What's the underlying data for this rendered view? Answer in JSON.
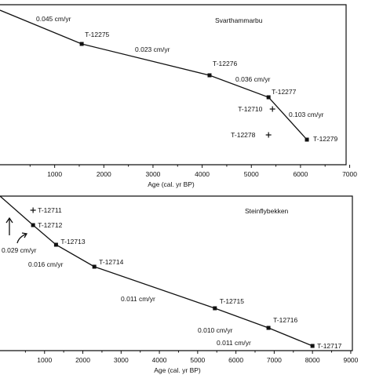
{
  "chart_data": [
    {
      "type": "line",
      "title": "Svarthammarbu",
      "xlabel": "Age (cal. yr BP)",
      "ylabel": "",
      "xlim": [
        0,
        7000
      ],
      "x_ticks": [
        "1000",
        "2000",
        "3000",
        "4000",
        "5000",
        "6000",
        "7000"
      ],
      "points": [
        {
          "x": 1550,
          "label": "T-12275"
        },
        {
          "x": 4150,
          "label": "T-12276"
        },
        {
          "x": 5350,
          "label": "T-12277"
        },
        {
          "x": 6130,
          "label": "T-12279"
        }
      ],
      "excluded_points": [
        {
          "x": 5430,
          "label": "T-12710"
        },
        {
          "x": 5350,
          "label": "T-12278"
        }
      ],
      "rates": [
        "0.045  cm/yr",
        "0.023  cm/yr",
        "0.036  cm/yr",
        "0.103  cm/yr"
      ]
    },
    {
      "type": "line",
      "title": "Steinflybekken",
      "xlabel": "Age (cal. yr BP)",
      "ylabel": "",
      "xlim": [
        0,
        9000
      ],
      "x_ticks": [
        "1000",
        "2000",
        "3000",
        "4000",
        "5000",
        "6000",
        "7000",
        "8000",
        "9000"
      ],
      "points": [
        {
          "x": 700,
          "label": "T-12712"
        },
        {
          "x": 1300,
          "label": "T-12713"
        },
        {
          "x": 2300,
          "label": "T-12714"
        },
        {
          "x": 5450,
          "label": "T-12715"
        },
        {
          "x": 6850,
          "label": "T-12716"
        },
        {
          "x": 8000,
          "label": "T-12717"
        }
      ],
      "excluded_points": [
        {
          "x": 700,
          "label": "T-12711"
        }
      ],
      "rates": [
        "0.029  cm/yr",
        "0.016  cm/yr",
        "0.011  cm/yr",
        "0.010  cm/yr",
        "0.011  cm/yr"
      ]
    }
  ]
}
